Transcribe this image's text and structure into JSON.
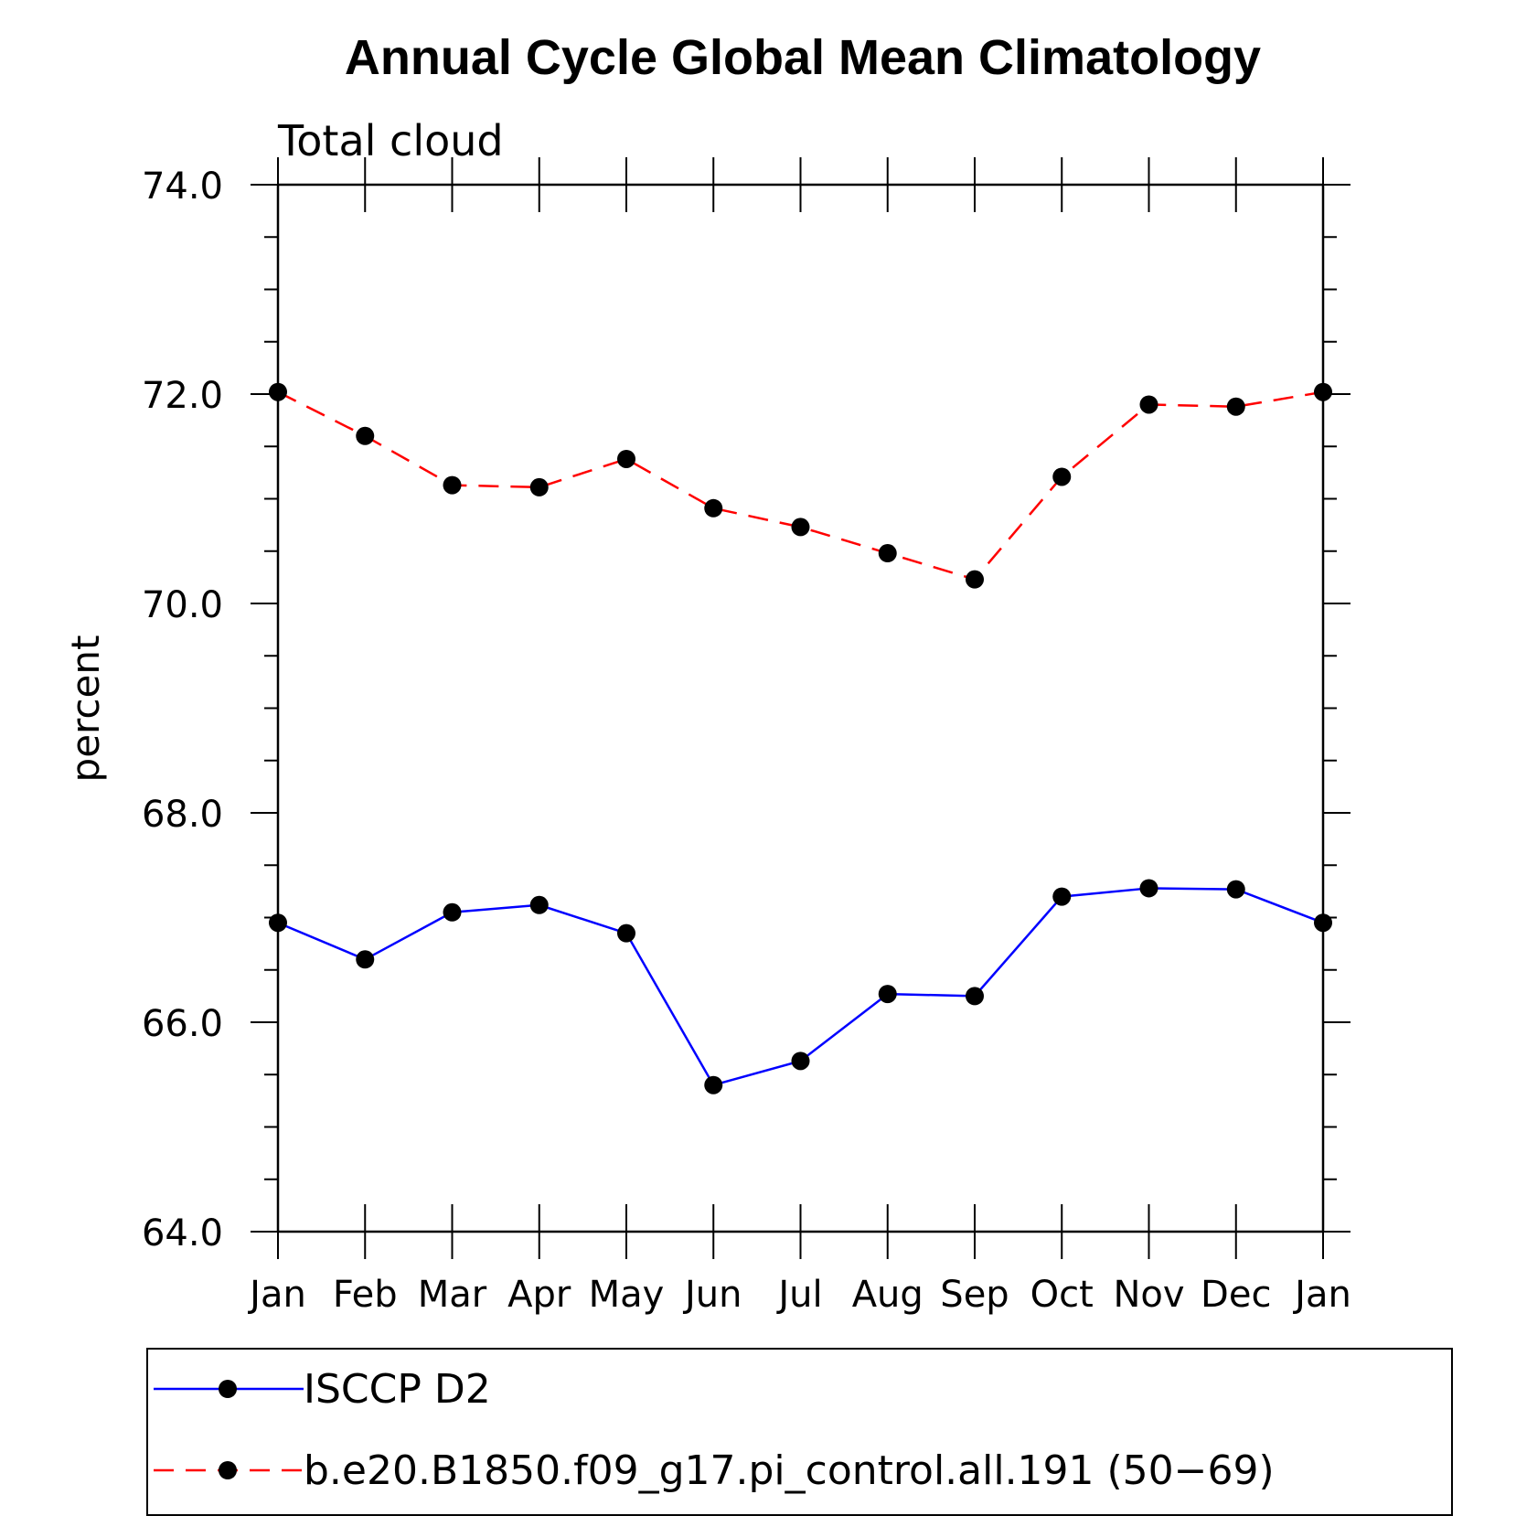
{
  "chart_data": {
    "type": "line",
    "title": "Annual Cycle Global Mean Climatology",
    "subtitle": "Total cloud",
    "xlabel": "",
    "ylabel": "percent",
    "categories": [
      "Jan",
      "Feb",
      "Mar",
      "Apr",
      "May",
      "Jun",
      "Jul",
      "Aug",
      "Sep",
      "Oct",
      "Nov",
      "Dec",
      "Jan"
    ],
    "ylim": [
      64.0,
      74.0
    ],
    "yticks": [
      "64.0",
      "66.0",
      "68.0",
      "70.0",
      "72.0",
      "74.0"
    ],
    "grid": false,
    "legend_position": "bottom",
    "series": [
      {
        "name": "ISCCP D2",
        "color": "#0000ff",
        "dash": "solid",
        "marker": "filled-circle",
        "values": [
          66.95,
          66.6,
          67.05,
          67.12,
          66.85,
          65.4,
          65.63,
          66.27,
          66.25,
          67.2,
          67.28,
          67.27,
          66.95
        ]
      },
      {
        "name": "b.e20.B1850.f09_g17.pi_control.all.191 (50−69)",
        "color": "#ff0000",
        "dash": "dashed",
        "marker": "filled-circle",
        "values": [
          72.02,
          71.6,
          71.13,
          71.11,
          71.38,
          70.91,
          70.73,
          70.48,
          70.23,
          71.21,
          71.9,
          71.88,
          72.02
        ]
      }
    ]
  }
}
